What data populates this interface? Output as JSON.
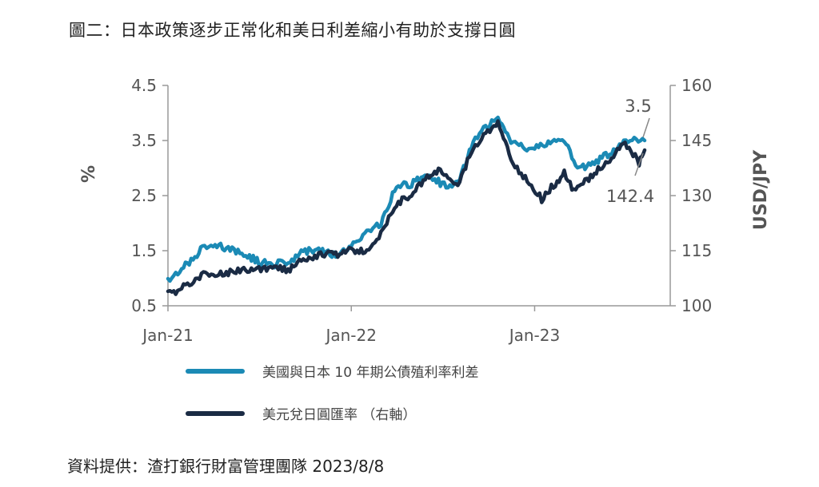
{
  "title": "圖二：日本政策逐步正常化和美日利差縮小有助於支撐日圓",
  "source": "資料提供：渣打銀行財富管理團隊  2023/8/8",
  "colors": {
    "spread": "#1b8ab5",
    "usdjpy": "#1a2b44",
    "axis": "#999999"
  },
  "chart_data": {
    "type": "line",
    "x_ticks": [
      "Jan-21",
      "Jan-22",
      "Jan-23"
    ],
    "x_range": [
      "2021-01-01",
      "2023-08-08"
    ],
    "left_axis": {
      "label": "%",
      "min": 0.5,
      "max": 4.5,
      "ticks": [
        "0.5",
        "1.5",
        "2.5",
        "3.5",
        "4.5"
      ]
    },
    "right_axis": {
      "label": "USD/JPY",
      "min": 100,
      "max": 160,
      "ticks": [
        "100",
        "115",
        "130",
        "145",
        "160"
      ]
    },
    "series": [
      {
        "name": "美國與日本 10 年期公債殖利率利差",
        "axis": "left",
        "points": [
          [
            "2021-01-01",
            0.95
          ],
          [
            "2021-02-01",
            1.2
          ],
          [
            "2021-02-20",
            1.35
          ],
          [
            "2021-03-15",
            1.6
          ],
          [
            "2021-04-01",
            1.6
          ],
          [
            "2021-05-01",
            1.55
          ],
          [
            "2021-06-01",
            1.45
          ],
          [
            "2021-07-01",
            1.3
          ],
          [
            "2021-08-01",
            1.25
          ],
          [
            "2021-09-01",
            1.3
          ],
          [
            "2021-10-01",
            1.5
          ],
          [
            "2021-11-01",
            1.5
          ],
          [
            "2021-12-01",
            1.4
          ],
          [
            "2022-01-01",
            1.6
          ],
          [
            "2022-02-01",
            1.85
          ],
          [
            "2022-03-01",
            2.0
          ],
          [
            "2022-04-01",
            2.7
          ],
          [
            "2022-05-01",
            2.7
          ],
          [
            "2022-06-01",
            2.9
          ],
          [
            "2022-07-01",
            2.7
          ],
          [
            "2022-08-01",
            2.7
          ],
          [
            "2022-09-01",
            3.5
          ],
          [
            "2022-10-20",
            3.95
          ],
          [
            "2022-11-15",
            3.5
          ],
          [
            "2022-12-01",
            3.4
          ],
          [
            "2023-01-01",
            3.35
          ],
          [
            "2023-02-01",
            3.5
          ],
          [
            "2023-03-01",
            3.5
          ],
          [
            "2023-03-20",
            3.1
          ],
          [
            "2023-04-15",
            3.0
          ],
          [
            "2023-05-15",
            3.2
          ],
          [
            "2023-06-15",
            3.35
          ],
          [
            "2023-07-10",
            3.55
          ],
          [
            "2023-08-08",
            3.5
          ]
        ]
      },
      {
        "name": "美元兌日圓匯率 （右軸）",
        "axis": "right",
        "points": [
          [
            "2021-01-01",
            103
          ],
          [
            "2021-02-01",
            105
          ],
          [
            "2021-03-01",
            108
          ],
          [
            "2021-04-01",
            109
          ],
          [
            "2021-05-01",
            109
          ],
          [
            "2021-06-01",
            110
          ],
          [
            "2021-07-01",
            110
          ],
          [
            "2021-08-01",
            110
          ],
          [
            "2021-09-01",
            110
          ],
          [
            "2021-10-01",
            113
          ],
          [
            "2021-11-01",
            114
          ],
          [
            "2021-12-01",
            114
          ],
          [
            "2022-01-01",
            115
          ],
          [
            "2022-02-01",
            115
          ],
          [
            "2022-03-01",
            120
          ],
          [
            "2022-04-01",
            128
          ],
          [
            "2022-05-01",
            130
          ],
          [
            "2022-06-01",
            135
          ],
          [
            "2022-07-01",
            137
          ],
          [
            "2022-08-01",
            133
          ],
          [
            "2022-09-01",
            143
          ],
          [
            "2022-10-20",
            150
          ],
          [
            "2022-11-15",
            140
          ],
          [
            "2022-12-01",
            137
          ],
          [
            "2023-01-15",
            129
          ],
          [
            "2023-02-15",
            134
          ],
          [
            "2023-03-01",
            136
          ],
          [
            "2023-03-20",
            131
          ],
          [
            "2023-04-15",
            134
          ],
          [
            "2023-05-15",
            138
          ],
          [
            "2023-06-30",
            144
          ],
          [
            "2023-07-28",
            139
          ],
          [
            "2023-08-08",
            142.4
          ]
        ]
      }
    ],
    "annotations": [
      {
        "text": "3.5",
        "series": 0
      },
      {
        "text": "142.4",
        "series": 1
      }
    ]
  }
}
